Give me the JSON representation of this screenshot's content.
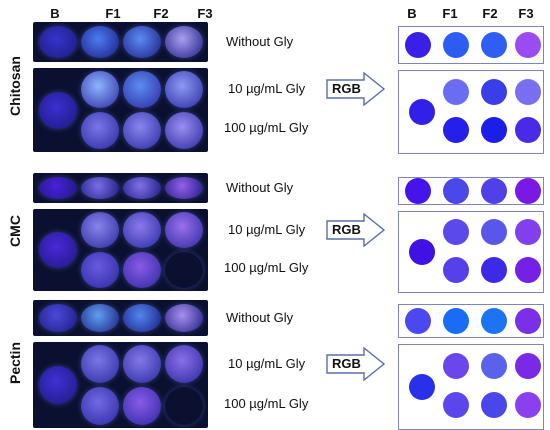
{
  "figure": {
    "photo_columns": [
      "B",
      "F1",
      "F2",
      "F3"
    ],
    "rgb_columns": [
      "B",
      "F1",
      "F2",
      "F3"
    ],
    "arrow_label": "RGB",
    "groups": [
      {
        "name": "Chitosan",
        "conditions": [
          "Without Gly",
          "10 µg/mL Gly",
          "100 µg/mL Gly"
        ],
        "film_colors": {
          "row1": [
            "#3534c8",
            "#4a7cf2",
            "#5a8cf5",
            "#a8a0f0"
          ],
          "row2": [
            "#8fb4ff",
            "#5d8cf0",
            "#8c9af5"
          ],
          "row3": [
            "#6a4fe0",
            "#7a76e8",
            "#8a86ee",
            "#9a8ef0"
          ],
          "row3_left": "#3a2fcf"
        },
        "dot_colors": {
          "row1": [
            "#3a1fe6",
            "#2d5cf2",
            "#2f5ef4",
            "#9a4cf0"
          ],
          "mid_b": "#3320e8",
          "row2": [
            "#6a6cf2",
            "#3a3ee8",
            "#7a6ef0"
          ],
          "row3": [
            "#2420ea",
            "#1a1ee8",
            "#4a2ae8"
          ]
        }
      },
      {
        "name": "CMC",
        "conditions": [
          "Without Gly",
          "10 µg/mL Gly",
          "100 µg/mL Gly"
        ],
        "film_colors": {
          "row1": [
            "#4a20d8",
            "#7a6ee6",
            "#8070e8",
            "#9460ea"
          ],
          "row2": [
            "#8a84ea",
            "#8a7aec",
            "#9a70ec"
          ],
          "row3": [
            "#7a6ae4",
            "#6a5ae0",
            "#8a5ae6"
          ],
          "row3_left": "#4a28d8"
        },
        "dot_colors": {
          "row1": [
            "#4414ea",
            "#4a48e8",
            "#5040ea",
            "#7a18e6"
          ],
          "mid_b": "#4010e4",
          "row2": [
            "#5a4aec",
            "#5a56ec",
            "#8240ec"
          ],
          "row3": [
            "#5640ea",
            "#3c2ae6",
            "#7420e6"
          ]
        }
      },
      {
        "name": "Pectin",
        "conditions": [
          "Without Gly",
          "10 µg/mL Gly",
          "100 µg/mL Gly"
        ],
        "film_colors": {
          "row1": [
            "#4a4ad8",
            "#5ea0f0",
            "#4e88ee",
            "#a890ee"
          ],
          "row2": [
            "#7a78e6",
            "#8478e8",
            "#8a6ee8"
          ],
          "row3": [
            "#7e6ae6",
            "#7468e4",
            "#8a5ae8"
          ],
          "row3_left": "#4030d4"
        },
        "dot_colors": {
          "row1": [
            "#4a48ee",
            "#1a6cf4",
            "#1a74f4",
            "#7a30e6"
          ],
          "mid_b": "#2a30ea",
          "row2": [
            "#6a46ec",
            "#5a62ec",
            "#7a2ae6"
          ],
          "row3": [
            "#5a46ec",
            "#4a46ea",
            "#8a40ee"
          ]
        }
      }
    ]
  }
}
